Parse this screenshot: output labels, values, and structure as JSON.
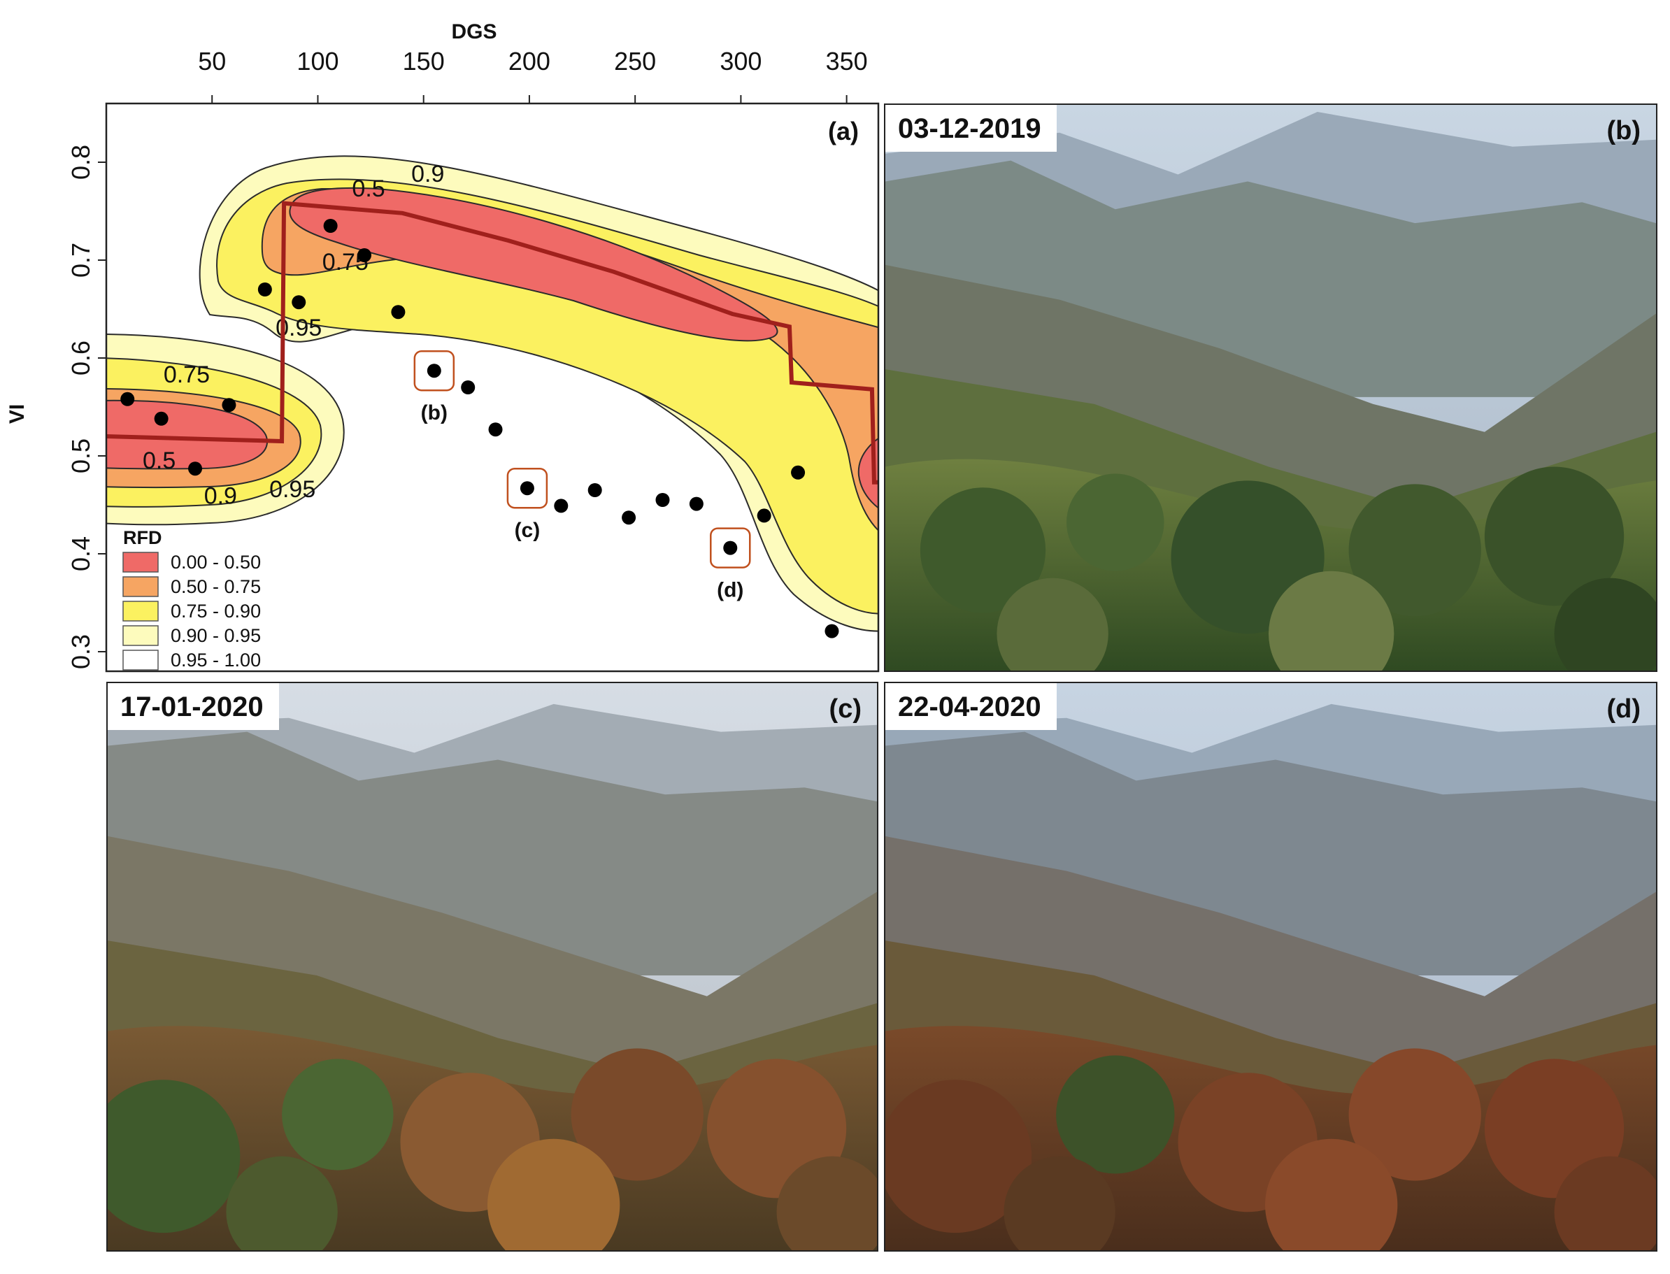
{
  "chart_data": {
    "type": "contour-scatter",
    "panel_label": "(a)",
    "xlabel": "DGS",
    "ylabel": "VI",
    "xlim": [
      0,
      365
    ],
    "ylim": [
      0.28,
      0.86
    ],
    "x_ticks": [
      50,
      100,
      150,
      200,
      250,
      300,
      350
    ],
    "y_ticks": [
      0.3,
      0.4,
      0.5,
      0.6,
      0.7,
      0.8
    ],
    "y_tick_labels": [
      "0.3",
      "0.4",
      "0.5",
      "0.6",
      "0.7",
      "0.8"
    ],
    "grid": false,
    "legend": {
      "title": "RFD",
      "placement": "bottom-left",
      "entries": [
        {
          "label": "0.00 - 0.50",
          "color": "#ef6a67"
        },
        {
          "label": "0.50 - 0.75",
          "color": "#f6a562"
        },
        {
          "label": "0.75 - 0.90",
          "color": "#fbf160"
        },
        {
          "label": "0.90 - 0.95",
          "color": "#fdfbbd"
        },
        {
          "label": "0.95 - 1.00",
          "color": "#ffffff"
        }
      ]
    },
    "contour_labels": [
      {
        "text": "0.9",
        "x": 152,
        "y": 0.78
      },
      {
        "text": "0.5",
        "x": 124,
        "y": 0.765
      },
      {
        "text": "0.75",
        "x": 113,
        "y": 0.69
      },
      {
        "text": "0.95",
        "x": 91,
        "y": 0.623
      },
      {
        "text": "0.75",
        "x": 38,
        "y": 0.575
      },
      {
        "text": "0.5",
        "x": 25,
        "y": 0.487
      },
      {
        "text": "0.9",
        "x": 54,
        "y": 0.451
      },
      {
        "text": "0.95",
        "x": 88,
        "y": 0.458
      }
    ],
    "median_line": {
      "color": "#a0201c",
      "points": [
        [
          0,
          0.52
        ],
        [
          83,
          0.515
        ],
        [
          84,
          0.758
        ],
        [
          140,
          0.748
        ],
        [
          190,
          0.72
        ],
        [
          240,
          0.688
        ],
        [
          296,
          0.645
        ],
        [
          323,
          0.632
        ],
        [
          324,
          0.575
        ],
        [
          362,
          0.568
        ],
        [
          363,
          0.473
        ],
        [
          365,
          0.473
        ]
      ]
    },
    "points": [
      {
        "x": 10,
        "y": 0.558
      },
      {
        "x": 26,
        "y": 0.538
      },
      {
        "x": 58,
        "y": 0.552
      },
      {
        "x": 42,
        "y": 0.487
      },
      {
        "x": 75,
        "y": 0.67
      },
      {
        "x": 91,
        "y": 0.657
      },
      {
        "x": 106,
        "y": 0.735
      },
      {
        "x": 122,
        "y": 0.705
      },
      {
        "x": 138,
        "y": 0.647
      },
      {
        "x": 155,
        "y": 0.587,
        "highlight": "(b)"
      },
      {
        "x": 171,
        "y": 0.57
      },
      {
        "x": 184,
        "y": 0.527
      },
      {
        "x": 199,
        "y": 0.467,
        "highlight": "(c)"
      },
      {
        "x": 215,
        "y": 0.449
      },
      {
        "x": 231,
        "y": 0.465
      },
      {
        "x": 247,
        "y": 0.437
      },
      {
        "x": 263,
        "y": 0.455
      },
      {
        "x": 279,
        "y": 0.451
      },
      {
        "x": 295,
        "y": 0.406,
        "highlight": "(d)"
      },
      {
        "x": 311,
        "y": 0.439
      },
      {
        "x": 327,
        "y": 0.483
      },
      {
        "x": 343,
        "y": 0.321
      }
    ],
    "highlight_color": "#c0501e"
  },
  "photos": [
    {
      "tag": "(b)",
      "date": "03-12-2019"
    },
    {
      "tag": "(c)",
      "date": "17-01-2020"
    },
    {
      "tag": "(d)",
      "date": "22-04-2020"
    }
  ]
}
